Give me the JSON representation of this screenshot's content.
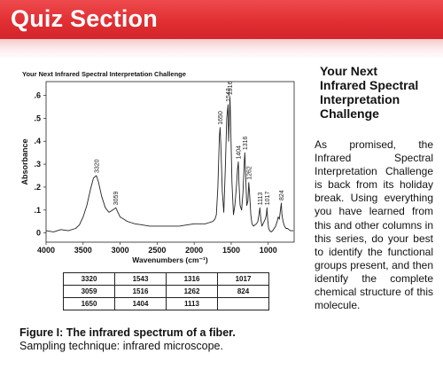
{
  "banner": {
    "title": "Quiz Section"
  },
  "sidebar": {
    "title": "Your Next Infrared Spectral Interpretation Challenge",
    "body": "As promised, the Infrared Spectral Interpretation Challenge is back from its holiday break. Using everything you have learned from this and other columns in this series, do your best to identify the functional groups present, and then identify the complete chemical structure of this molecule."
  },
  "caption": {
    "lead": "Figure I: The infrared spectrum of a fiber.",
    "rest": "Sampling technique: infrared microscope."
  },
  "table": {
    "rows": [
      [
        "3320",
        "1543",
        "1316",
        "1017"
      ],
      [
        "3059",
        "1516",
        "1262",
        "824"
      ],
      [
        "1650",
        "1404",
        "1113",
        ""
      ]
    ]
  },
  "chart_data": {
    "type": "line",
    "title": "Your Next Infrared Spectral Interpretation Challenge",
    "xlabel": "Wavenumbers (cm⁻¹)",
    "ylabel": "Absorbance",
    "xlim": [
      4000,
      650
    ],
    "ylim": [
      -0.04,
      0.66
    ],
    "x_reversed": true,
    "grid": false,
    "x_ticks": [
      4000,
      3500,
      3000,
      2500,
      2000,
      1500,
      1000
    ],
    "x_tick_labels": [
      "4000",
      "3500",
      "3000",
      "2500",
      "2000",
      "1500",
      "1000"
    ],
    "y_ticks": [
      0,
      0.1,
      0.2,
      0.3,
      0.4,
      0.5,
      0.6
    ],
    "y_tick_labels": [
      "0",
      ".1",
      ".2",
      ".3",
      ".4",
      ".5",
      ".6"
    ],
    "peak_labels": [
      {
        "x": 3320,
        "label": "3320"
      },
      {
        "x": 3059,
        "label": "3059"
      },
      {
        "x": 1650,
        "label": "1650"
      },
      {
        "x": 1543,
        "label": "1543"
      },
      {
        "x": 1516,
        "label": "1516"
      },
      {
        "x": 1404,
        "label": "1404"
      },
      {
        "x": 1316,
        "label": "1316"
      },
      {
        "x": 1262,
        "label": "1262"
      },
      {
        "x": 1113,
        "label": "1113"
      },
      {
        "x": 1017,
        "label": "1017"
      },
      {
        "x": 824,
        "label": "824"
      }
    ],
    "series": [
      {
        "x": [
          4000,
          3900,
          3800,
          3700,
          3600,
          3550,
          3500,
          3450,
          3400,
          3360,
          3320,
          3290,
          3250,
          3200,
          3150,
          3100,
          3059,
          3030,
          3000,
          2950,
          2900,
          2850,
          2800,
          2700,
          2600,
          2500,
          2400,
          2300,
          2200,
          2100,
          2000,
          1900,
          1850,
          1800,
          1750,
          1720,
          1700,
          1680,
          1660,
          1650,
          1640,
          1620,
          1600,
          1580,
          1560,
          1543,
          1535,
          1525,
          1516,
          1505,
          1490,
          1470,
          1450,
          1430,
          1415,
          1404,
          1395,
          1380,
          1360,
          1340,
          1325,
          1316,
          1305,
          1290,
          1275,
          1262,
          1250,
          1235,
          1220,
          1200,
          1180,
          1160,
          1140,
          1125,
          1113,
          1100,
          1085,
          1070,
          1055,
          1040,
          1025,
          1017,
          1008,
          995,
          980,
          960,
          940,
          920,
          900,
          880,
          865,
          850,
          835,
          824,
          815,
          800,
          780,
          760,
          740,
          720,
          700,
          680,
          660
        ],
        "values": [
          0.01,
          0.005,
          0.015,
          0.01,
          0.02,
          0.035,
          0.07,
          0.12,
          0.19,
          0.24,
          0.25,
          0.22,
          0.16,
          0.11,
          0.09,
          0.1,
          0.11,
          0.09,
          0.07,
          0.06,
          0.05,
          0.045,
          0.04,
          0.035,
          0.03,
          0.03,
          0.03,
          0.03,
          0.03,
          0.035,
          0.04,
          0.04,
          0.04,
          0.045,
          0.05,
          0.06,
          0.08,
          0.2,
          0.42,
          0.46,
          0.38,
          0.18,
          0.09,
          0.28,
          0.5,
          0.56,
          0.4,
          0.5,
          0.59,
          0.45,
          0.22,
          0.08,
          0.12,
          0.2,
          0.28,
          0.31,
          0.22,
          0.12,
          0.1,
          0.18,
          0.3,
          0.35,
          0.25,
          0.12,
          0.14,
          0.22,
          0.16,
          0.08,
          0.04,
          0.03,
          0.035,
          0.04,
          0.05,
          0.08,
          0.11,
          0.06,
          0.03,
          0.04,
          0.05,
          0.06,
          0.08,
          0.11,
          0.06,
          0.02,
          0.01,
          0.005,
          0.01,
          0.02,
          0.03,
          0.05,
          0.07,
          0.06,
          0.1,
          0.13,
          0.08,
          0.05,
          0.03,
          0.02,
          0.02,
          0.015,
          0.01,
          0.01,
          0.01
        ]
      }
    ]
  }
}
